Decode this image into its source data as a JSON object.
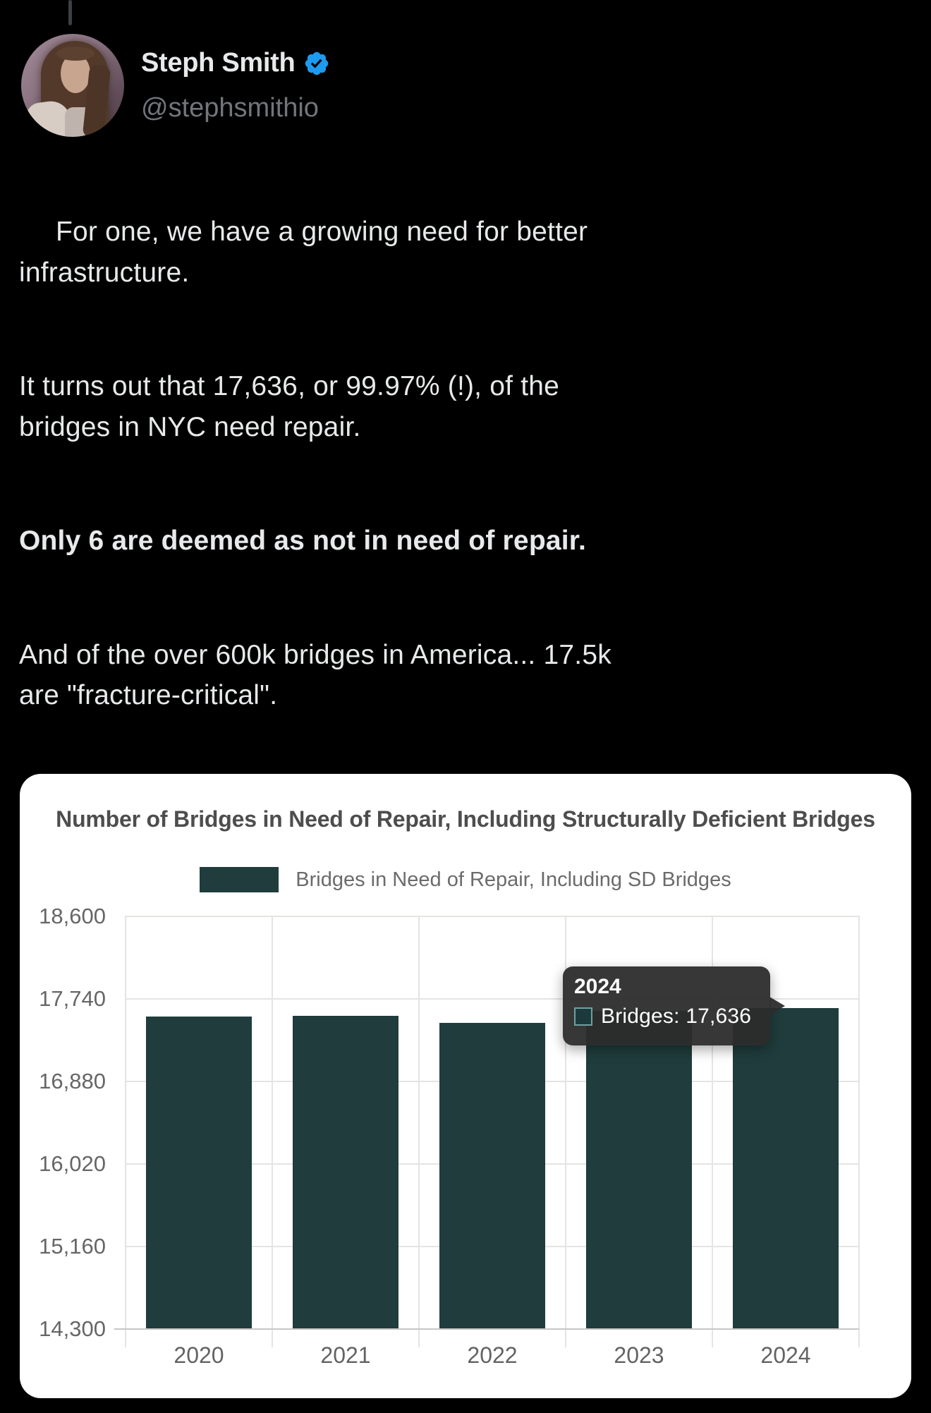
{
  "header": {
    "name": "Steph Smith",
    "handle": "@stephsmithio",
    "verified_icon": "verified-badge",
    "avatar_alt": "profile-photo"
  },
  "tweet": {
    "lead_icon": "lightbulb-emoji",
    "p1": "For one, we have a growing need for better\ninfrastructure.",
    "p2": "It turns out that 17,636, or 99.97% (!), of the\nbridges in NYC need repair.",
    "p3": "Only 6 are deemed as not in need of repair.",
    "p4": "And of the over 600k bridges in America... 17.5k\nare \"fracture-critical\"."
  },
  "chart_data": {
    "type": "bar",
    "title": "Number of Bridges in Need of Repair, Including Structurally Deficient Bridges",
    "legend": [
      "Bridges in Need of Repair, Including SD Bridges"
    ],
    "legend_position": "top",
    "categories": [
      "2020",
      "2021",
      "2022",
      "2023",
      "2024"
    ],
    "values": [
      17550,
      17555,
      17480,
      17610,
      17636
    ],
    "y_ticks": [
      "18,600",
      "17,740",
      "16,880",
      "16,020",
      "15,160",
      "14,300"
    ],
    "ylim": [
      14300,
      18600
    ],
    "grid": true,
    "bar_color": "#203c3c",
    "tooltip": {
      "title": "2024",
      "series_label": "Bridges",
      "value": "17,636",
      "text": "Bridges: 17,636"
    }
  },
  "colors": {
    "page_background": "#000000",
    "tweet_text": "#e7e9ea",
    "handle_gray": "#71767b",
    "verified_blue": "#1d9bf0",
    "card_background": "#ffffff",
    "title_gray": "#4d4d4d",
    "gridline": "#e5e4e2",
    "bar_teal": "#203c3c",
    "tooltip_background": "#2c2c2c"
  }
}
